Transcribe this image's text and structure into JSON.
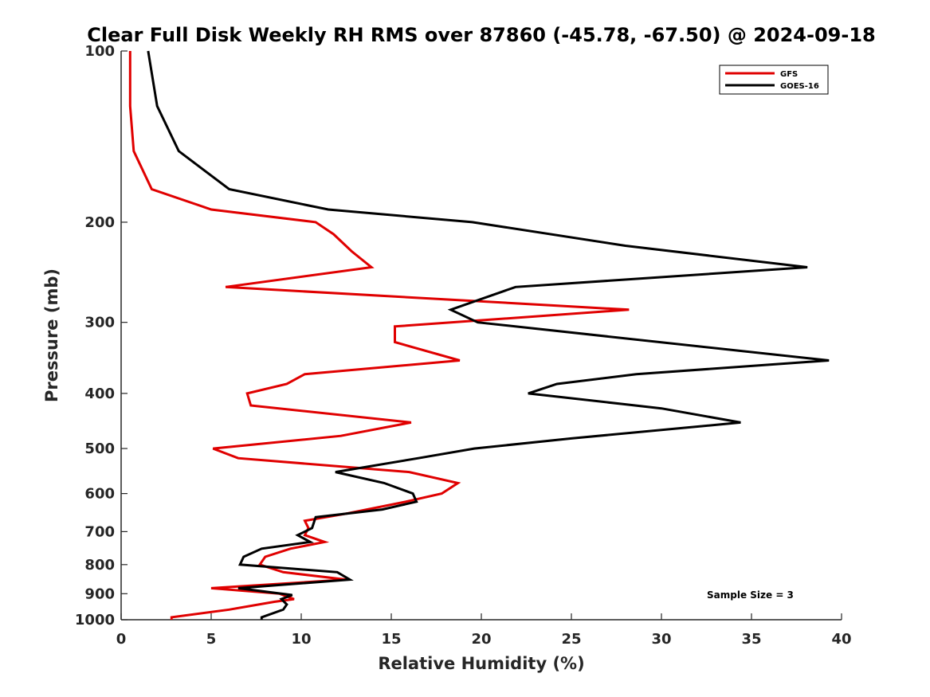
{
  "chart_data": {
    "type": "line",
    "title": "Clear Full Disk Weekly RH RMS over 87860 (-45.78, -67.50) @ 2024-09-18",
    "xlabel": "Relative Humidity (%)",
    "ylabel": "Pressure (mb)",
    "xlim": [
      0,
      40
    ],
    "ylim": [
      100,
      1000
    ],
    "y_scale": "log",
    "y_reversed": true,
    "x_ticks": [
      "0",
      "5",
      "10",
      "15",
      "20",
      "25",
      "30",
      "35",
      "40"
    ],
    "y_ticks": [
      "100",
      "200",
      "300",
      "400",
      "500",
      "600",
      "700",
      "800",
      "900",
      "1000"
    ],
    "grid": false,
    "legend_position": "top-right",
    "annotation": "Sample Size = 3",
    "series": [
      {
        "name": "GFS",
        "color": "#e00000",
        "points": [
          [
            0.5,
            100
          ],
          [
            0.5,
            125
          ],
          [
            0.7,
            150
          ],
          [
            1.7,
            175
          ],
          [
            5.0,
            190
          ],
          [
            10.8,
            200
          ],
          [
            11.8,
            210
          ],
          [
            12.8,
            225
          ],
          [
            13.9,
            240
          ],
          [
            5.8,
            260
          ],
          [
            28.2,
            285
          ],
          [
            15.2,
            305
          ],
          [
            15.2,
            325
          ],
          [
            18.8,
            350
          ],
          [
            10.2,
            370
          ],
          [
            9.2,
            385
          ],
          [
            7.0,
            400
          ],
          [
            7.2,
            420
          ],
          [
            16.1,
            450
          ],
          [
            12.2,
            475
          ],
          [
            5.1,
            500
          ],
          [
            6.5,
            520
          ],
          [
            16.0,
            550
          ],
          [
            18.7,
            575
          ],
          [
            17.8,
            600
          ],
          [
            15.8,
            620
          ],
          [
            12.6,
            650
          ],
          [
            10.2,
            670
          ],
          [
            10.4,
            690
          ],
          [
            10.2,
            710
          ],
          [
            11.3,
            730
          ],
          [
            9.4,
            750
          ],
          [
            8.0,
            775
          ],
          [
            7.7,
            800
          ],
          [
            9.0,
            825
          ],
          [
            12.5,
            850
          ],
          [
            5.0,
            880
          ],
          [
            8.8,
            900
          ],
          [
            9.6,
            920
          ],
          [
            8.5,
            930
          ],
          [
            6.0,
            960
          ],
          [
            2.8,
            990
          ],
          [
            2.8,
            1000
          ]
        ]
      },
      {
        "name": "GOES-16",
        "color": "#000000",
        "points": [
          [
            1.5,
            100
          ],
          [
            2.0,
            125
          ],
          [
            3.2,
            150
          ],
          [
            6.0,
            175
          ],
          [
            11.5,
            190
          ],
          [
            19.5,
            200
          ],
          [
            28.0,
            220
          ],
          [
            38.1,
            240
          ],
          [
            21.9,
            260
          ],
          [
            18.3,
            285
          ],
          [
            19.8,
            300
          ],
          [
            39.3,
            350
          ],
          [
            28.6,
            370
          ],
          [
            24.2,
            385
          ],
          [
            22.6,
            400
          ],
          [
            30.0,
            425
          ],
          [
            34.4,
            450
          ],
          [
            25.0,
            480
          ],
          [
            19.6,
            500
          ],
          [
            16.5,
            520
          ],
          [
            11.9,
            550
          ],
          [
            14.6,
            575
          ],
          [
            16.2,
            600
          ],
          [
            16.4,
            620
          ],
          [
            14.5,
            640
          ],
          [
            10.8,
            660
          ],
          [
            10.6,
            690
          ],
          [
            9.8,
            710
          ],
          [
            10.5,
            730
          ],
          [
            7.8,
            750
          ],
          [
            6.8,
            775
          ],
          [
            6.6,
            800
          ],
          [
            12.0,
            825
          ],
          [
            12.7,
            850
          ],
          [
            6.5,
            880
          ],
          [
            9.5,
            905
          ],
          [
            8.9,
            920
          ],
          [
            9.2,
            940
          ],
          [
            9.0,
            960
          ],
          [
            7.8,
            990
          ],
          [
            7.8,
            1000
          ]
        ]
      }
    ]
  }
}
